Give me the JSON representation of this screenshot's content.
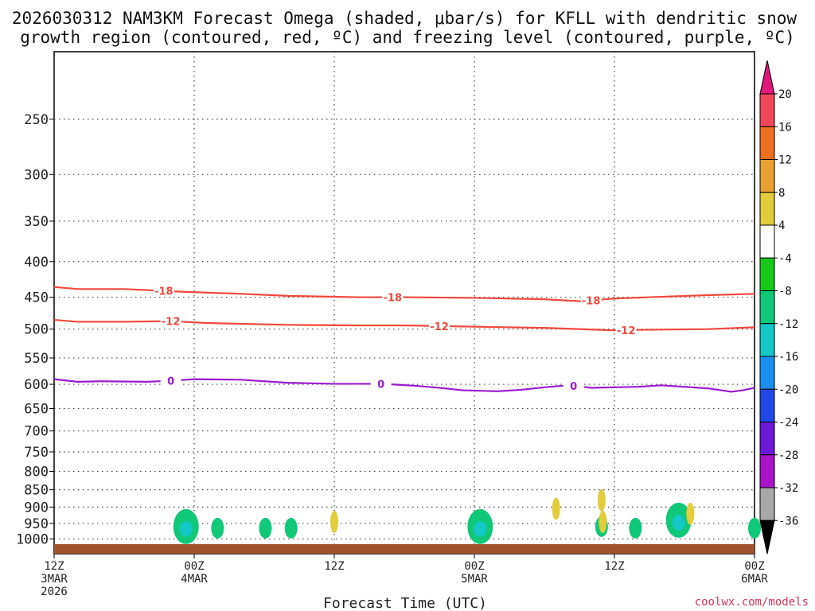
{
  "title_line1": "2026030312 NAM3KM Forecast Omega (shaded, μbar/s) for KFLL with dendritic snow",
  "title_line2": "growth region (contoured, red, ºC) and freezing level (contoured, purple, ºC)",
  "xlabel": "Forecast Time (UTC)",
  "credit": "coolwx.com/models",
  "colors": {
    "temp_contour": "#f0483c",
    "freezing_contour": "#9a1ad0",
    "ground": "#a0522d",
    "grid": "#444444"
  },
  "chart_data": {
    "type": "contour",
    "y_axis": {
      "label": "",
      "scale": "log-pressure",
      "unit": "hPa",
      "range": [
        1050,
        200
      ],
      "ticks": [
        250,
        300,
        350,
        400,
        450,
        500,
        550,
        600,
        650,
        700,
        750,
        800,
        850,
        900,
        950,
        1000
      ]
    },
    "x_axis": {
      "range_hours": [
        0,
        60
      ],
      "ticks": [
        {
          "hour": 0,
          "labels": [
            "12Z",
            "3MAR",
            "2026"
          ]
        },
        {
          "hour": 12,
          "labels": [
            "00Z",
            "4MAR"
          ]
        },
        {
          "hour": 24,
          "labels": [
            "12Z"
          ]
        },
        {
          "hour": 36,
          "labels": [
            "00Z",
            "5MAR"
          ]
        },
        {
          "hour": 48,
          "labels": [
            "12Z"
          ]
        },
        {
          "hour": 60,
          "labels": [
            "00Z",
            "6MAR"
          ]
        }
      ]
    },
    "contours": [
      {
        "name": "-18",
        "color": "#f0483c",
        "hours": [
          0,
          2,
          6,
          11,
          16,
          20,
          26,
          30,
          36,
          42,
          45,
          48,
          51,
          56,
          60
        ],
        "pressure": [
          435,
          438,
          438,
          442,
          445,
          448,
          450,
          450,
          451,
          453,
          456,
          452,
          450,
          447,
          445
        ],
        "label_hours": [
          9.4,
          29,
          46
        ]
      },
      {
        "name": "-12",
        "color": "#f0483c",
        "hours": [
          0,
          2,
          6,
          10,
          13,
          20,
          26,
          30,
          36,
          42,
          48,
          51,
          56,
          60
        ],
        "pressure": [
          485,
          488,
          488,
          487,
          490,
          493,
          494,
          494,
          496,
          498,
          502,
          501,
          500,
          497
        ],
        "label_hours": [
          10,
          33,
          49
        ]
      },
      {
        "name": "0",
        "color": "#9a1ad0",
        "hours": [
          0,
          2,
          4,
          8,
          10,
          12,
          16,
          20,
          24,
          28,
          31,
          33,
          35,
          38,
          40,
          42,
          44,
          46,
          50,
          52,
          56,
          58,
          59,
          60
        ],
        "pressure": [
          590,
          595,
          594,
          595,
          593,
          590,
          591,
          597,
          599,
          599,
          603,
          607,
          612,
          614,
          611,
          606,
          602,
          607,
          605,
          602,
          608,
          615,
          612,
          607
        ],
        "label_hours": [
          10,
          28,
          44.5
        ]
      }
    ],
    "shaded_omega": {
      "unit": "μbar/s",
      "upward_cells": [
        {
          "hour": 11.3,
          "pressure": 960,
          "value": -9,
          "core": -15
        },
        {
          "hour": 14.0,
          "pressure": 965,
          "value": -8
        },
        {
          "hour": 18.1,
          "pressure": 965,
          "value": -8
        },
        {
          "hour": 20.3,
          "pressure": 965,
          "value": -8
        },
        {
          "hour": 36.5,
          "pressure": 960,
          "value": -9,
          "core": -15
        },
        {
          "hour": 46.9,
          "pressure": 960,
          "value": -8
        },
        {
          "hour": 49.8,
          "pressure": 965,
          "value": -8
        },
        {
          "hour": 53.5,
          "pressure": 940,
          "value": -9,
          "core": -14
        },
        {
          "hour": 60.0,
          "pressure": 965,
          "value": -8
        }
      ],
      "downward_cells": [
        {
          "hour": 24.0,
          "pressure": 945,
          "value": 5
        },
        {
          "hour": 43.0,
          "pressure": 905,
          "value": 5
        },
        {
          "hour": 46.9,
          "pressure": 880,
          "value": 5
        },
        {
          "hour": 47.0,
          "pressure": 945,
          "value": 5
        },
        {
          "hour": 54.5,
          "pressure": 920,
          "value": 6
        }
      ]
    },
    "colorbar": {
      "labels": [
        "20",
        "16",
        "12",
        "8",
        "4",
        "-4",
        "-8",
        "-12",
        "-16",
        "-20",
        "-24",
        "-28",
        "-32",
        "-36"
      ],
      "colors": [
        "#f0485a",
        "#ec7020",
        "#e8a030",
        "#e3cc3c",
        "#ffffff",
        "#18c818",
        "#10c878",
        "#14c8c8",
        "#1890f0",
        "#2048e8",
        "#6c18d8",
        "#a814c8",
        "#a8a8a8"
      ],
      "top_arrow_color": "#e0187c",
      "bottom_arrow_color": "#000000"
    }
  }
}
